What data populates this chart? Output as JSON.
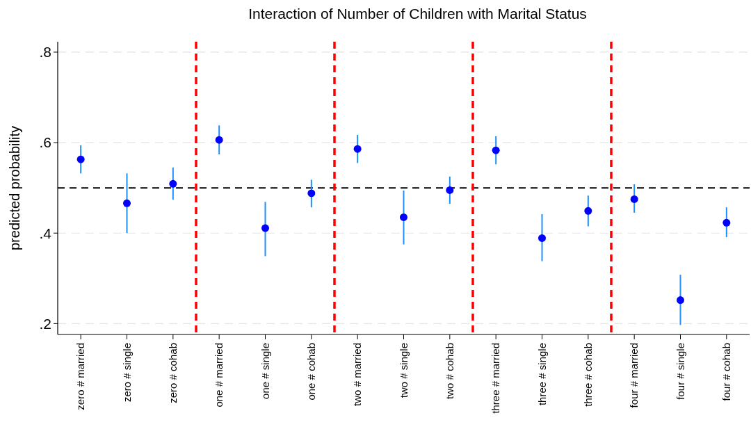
{
  "chart_data": {
    "type": "scatter",
    "title": "Interaction of Number of Children with Marital Status",
    "ylabel": "predicted probability",
    "categories": [
      "zero # married",
      "zero # single",
      "zero # cohab",
      "one # married",
      "one # single",
      "one # cohab",
      "two # married",
      "two # single",
      "two # cohab",
      "three # married",
      "three # single",
      "three # cohab",
      "four # married",
      "four # single",
      "four # cohab"
    ],
    "ylim": [
      0.176,
      0.823
    ],
    "yticks": [
      {
        "value": 0.2,
        "label": ".2"
      },
      {
        "value": 0.4,
        "label": ".4"
      },
      {
        "value": 0.6,
        "label": ".6"
      },
      {
        "value": 0.8,
        "label": ".8"
      }
    ],
    "grid": "y",
    "marker": "circle",
    "series": [
      {
        "color": "#0000ff",
        "values": [
          0.563,
          0.466,
          0.509,
          0.606,
          0.411,
          0.488,
          0.586,
          0.435,
          0.495,
          0.583,
          0.389,
          0.449,
          0.475,
          0.252,
          0.423
        ],
        "errors": [
          [
            0.532,
            0.594
          ],
          [
            0.4,
            0.532
          ],
          [
            0.474,
            0.545
          ],
          [
            0.574,
            0.638
          ],
          [
            0.349,
            0.469
          ],
          [
            0.457,
            0.518
          ],
          [
            0.555,
            0.617
          ],
          [
            0.375,
            0.494
          ],
          [
            0.465,
            0.525
          ],
          [
            0.552,
            0.614
          ],
          [
            0.338,
            0.442
          ],
          [
            0.415,
            0.483
          ],
          [
            0.445,
            0.508
          ],
          [
            0.197,
            0.308
          ],
          [
            0.391,
            0.457
          ]
        ]
      }
    ],
    "ref_lines": [
      {
        "axis": "y",
        "value": 0.5,
        "color": "#000000",
        "line_style": "dashed"
      }
    ]
  }
}
